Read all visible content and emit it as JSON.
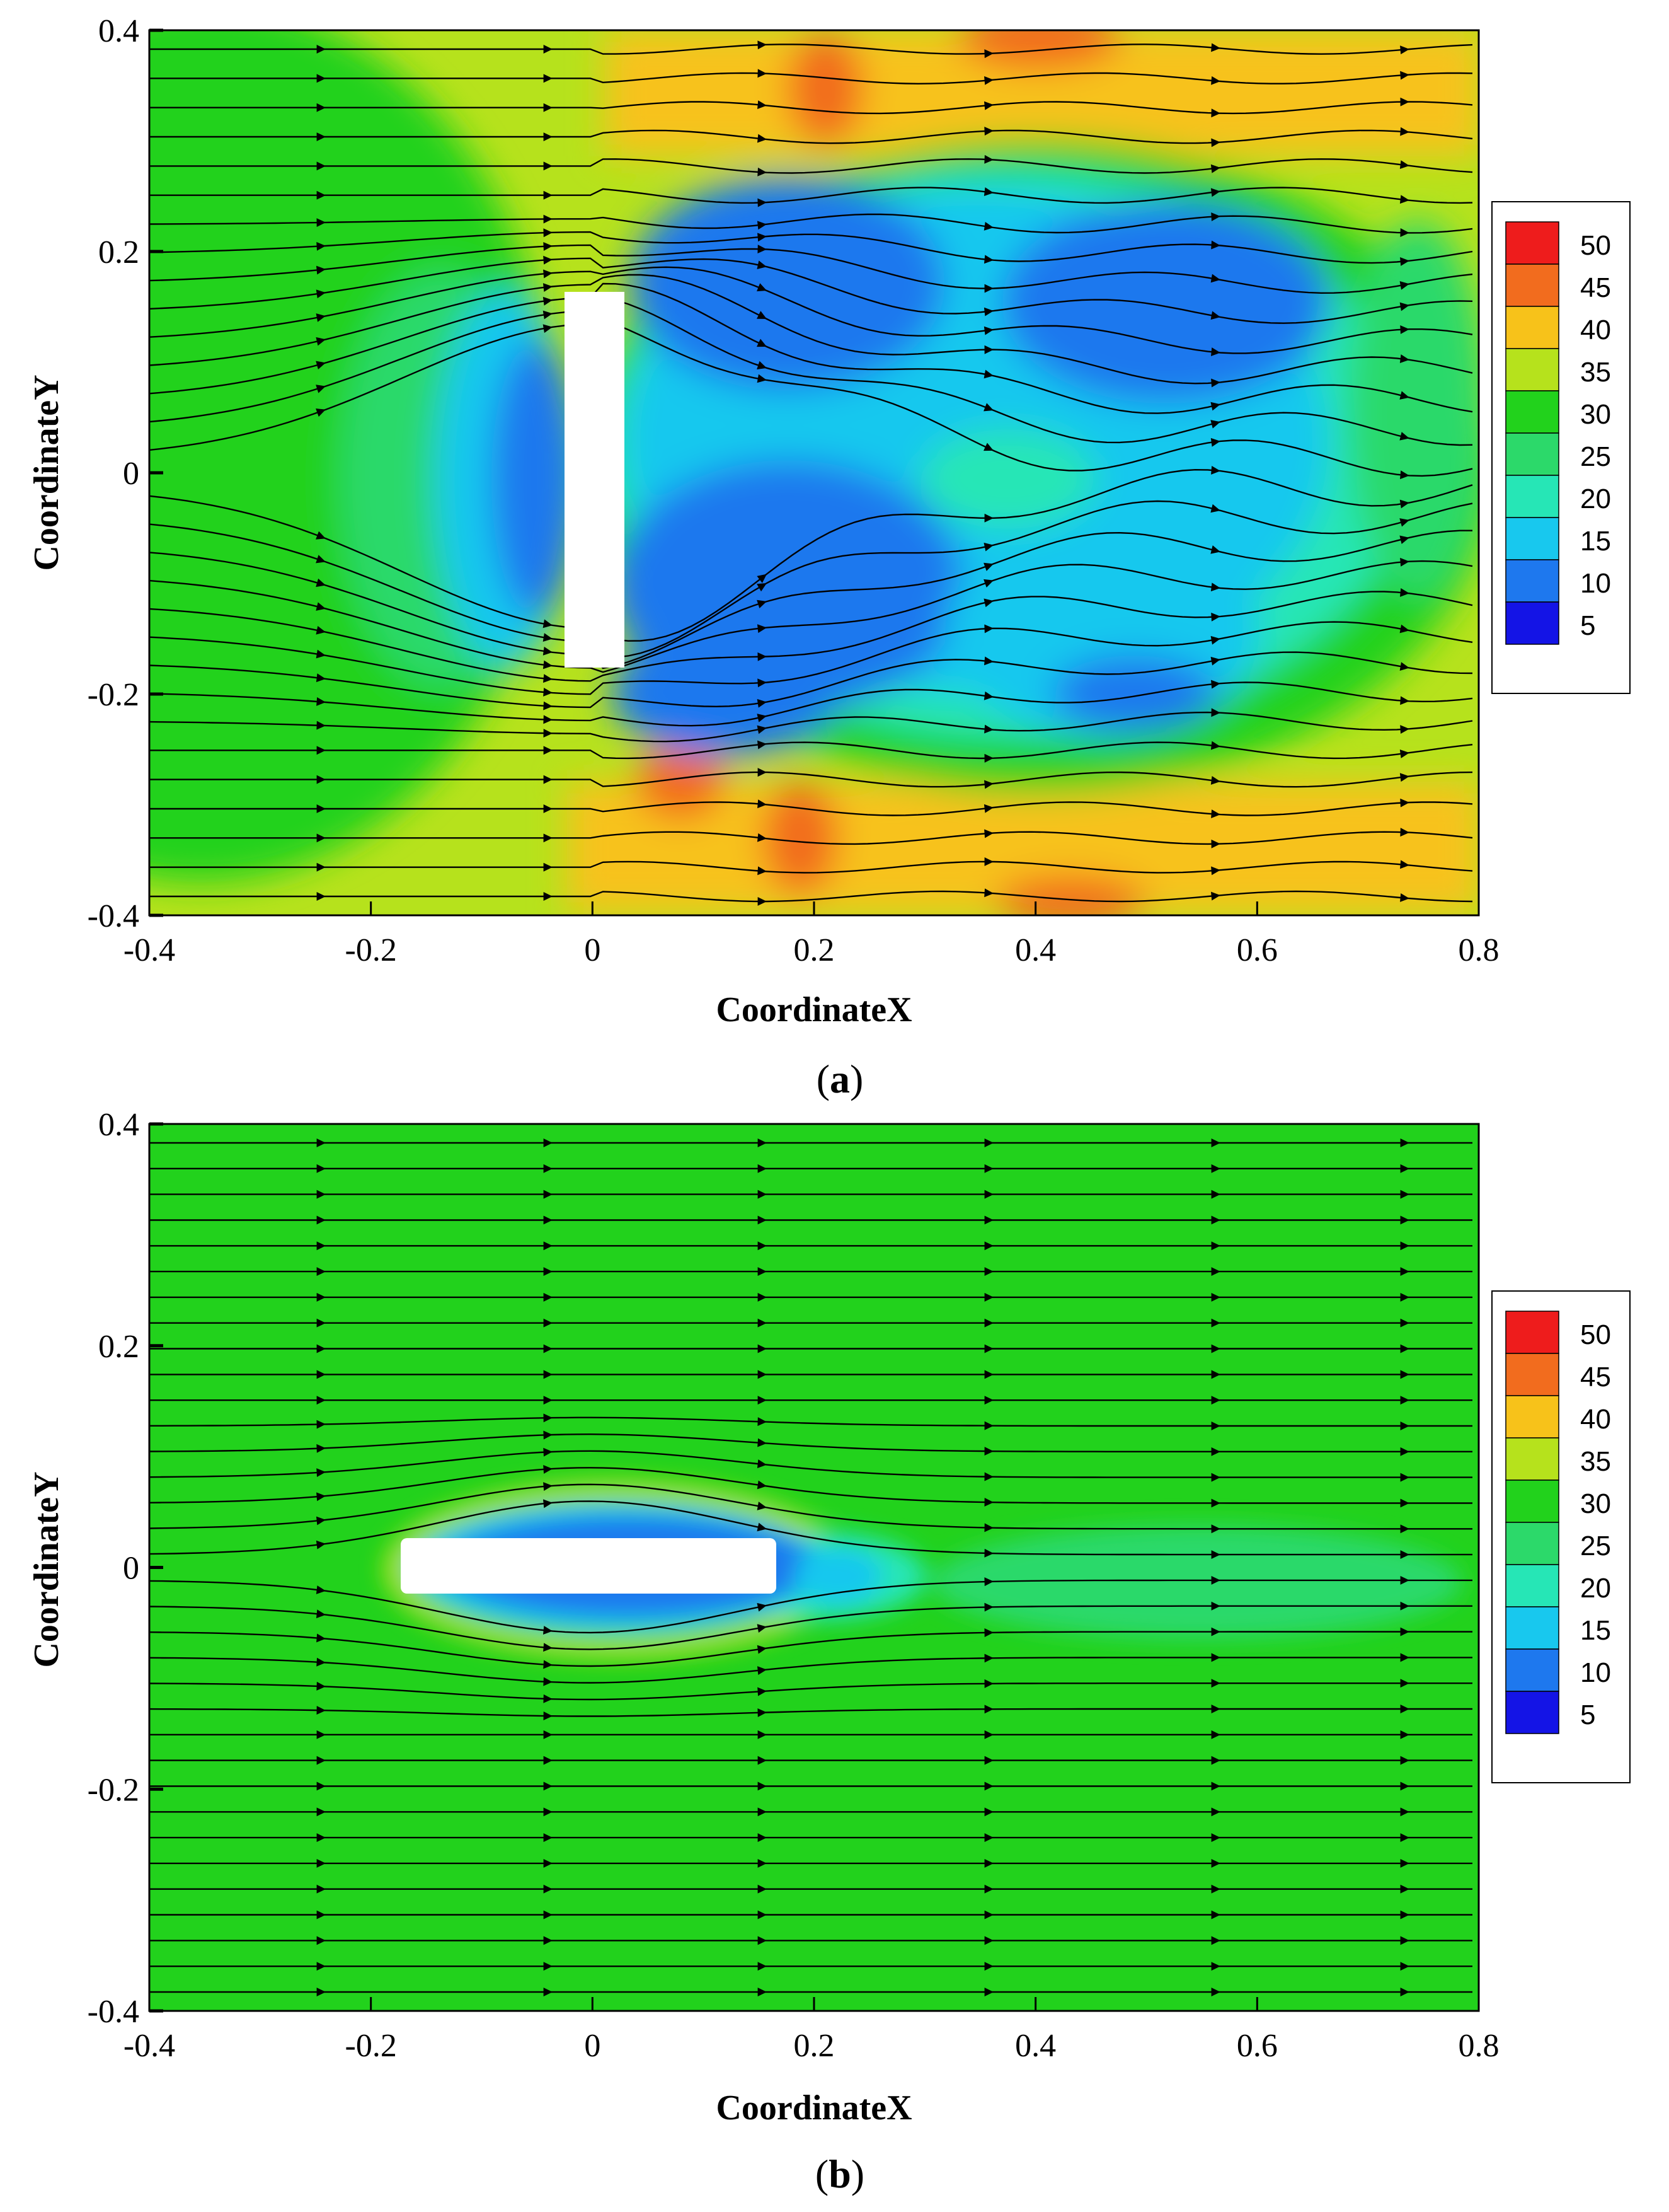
{
  "chart_data": [
    {
      "type": "contour",
      "panel_label": "a",
      "xlabel": "CoordinateX",
      "ylabel": "CoordinateY",
      "xlim": [
        -0.4,
        0.8
      ],
      "ylim": [
        -0.4,
        0.4
      ],
      "x_ticks": [
        "-0.4",
        "-0.2",
        "0",
        "0.2",
        "0.4",
        "0.6",
        "0.8"
      ],
      "y_ticks": [
        "0.4",
        "0.2",
        "0",
        "-0.2",
        "-0.4"
      ],
      "legend_levels": [
        "50",
        "45",
        "40",
        "35",
        "30",
        "25",
        "20",
        "15",
        "10",
        "5"
      ],
      "legend_position": "right",
      "streamlines": true,
      "obstacle": {
        "x": [
          0.0,
          0.03
        ],
        "y": [
          -0.17,
          0.17
        ]
      }
    },
    {
      "type": "contour",
      "panel_label": "b",
      "xlabel": "CoordinateX",
      "ylabel": "CoordinateY",
      "xlim": [
        -0.4,
        0.8
      ],
      "ylim": [
        -0.4,
        0.4
      ],
      "x_ticks": [
        "-0.4",
        "-0.2",
        "0",
        "0.2",
        "0.4",
        "0.6",
        "0.8"
      ],
      "y_ticks": [
        "0.4",
        "0.2",
        "0",
        "-0.2",
        "-0.4"
      ],
      "legend_levels": [
        "50",
        "45",
        "40",
        "35",
        "30",
        "25",
        "20",
        "15",
        "10",
        "5"
      ],
      "legend_position": "right",
      "streamlines": true,
      "obstacle": {
        "x": [
          -0.17,
          0.17
        ],
        "y": [
          -0.025,
          0.025
        ]
      }
    }
  ],
  "colors": {
    "level_50": "#ee1c1c",
    "level_45": "#f26c1e",
    "level_40": "#f7c21a",
    "level_35": "#b6e21c",
    "level_30": "#22d21c",
    "level_25": "#2cd96a",
    "level_20": "#26e6b6",
    "level_15": "#18c8ee",
    "level_10": "#1e78ee",
    "level_5": "#1414e6",
    "streamline": "#000000"
  }
}
